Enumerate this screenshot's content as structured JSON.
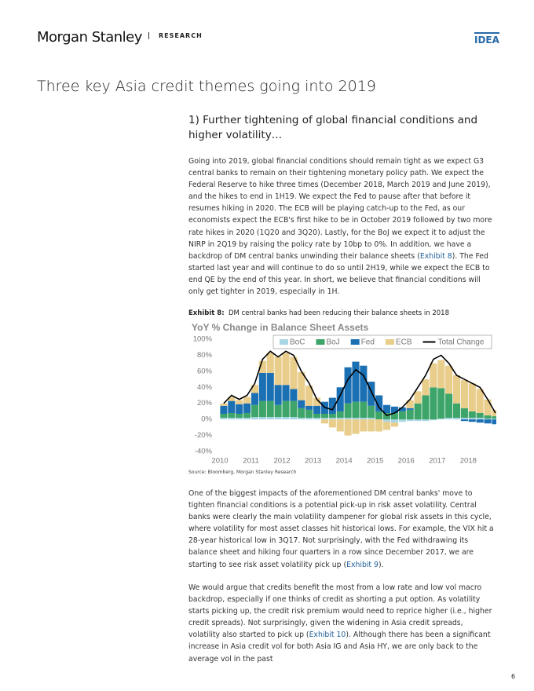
{
  "header": {
    "brand": "Morgan Stanley",
    "section": "RESEARCH",
    "tag": "IDEA"
  },
  "title": "Three key Asia credit themes going into 2019",
  "heading": "1) Further tightening of global financial conditions and higher volatility…",
  "paragraphs": [
    [
      "Going into 2019, global financial conditions should remain tight as we expect G3 central banks to remain on their tightening monetary policy path. We expect the Federal Reserve to hike three times (December 2018, March 2019 and June 2019), and the hikes to end in 1H19. We expect the Fed to pause after that before it resumes hiking in 2020. The ECB will be playing catch-up to the Fed, as our economists expect the ECB's first hike to be in October 2019 followed by two more rate hikes in 2020 (1Q20 and 3Q20). Lastly, for the BoJ we expect it to adjust the NIRP in 2Q19 by raising the policy rate by 10bp to 0%. In addition, we have a backdrop of DM central banks unwinding their balance sheets (",
      "Exhibit 8",
      "). The Fed started last year and will continue to do so until 2H19, while we expect the ECB to end QE by the end of this year. In short, we believe that financial conditions will only get tighter in 2019, especially in 1H."
    ],
    [
      "One of the biggest impacts of the aforementioned DM central banks' move to tighten financial conditions is a potential pick-up in risk asset volatility. Central banks were clearly the main volatility dampener for global risk assets in this cycle, where volatility for most asset classes hit historical lows. For example, the VIX hit a 28-year historical low in 3Q17. Not surprisingly, with the Fed withdrawing its balance sheet and hiking four quarters in a row since December 2017, we are starting to see risk asset volatility pick up (",
      "Exhibit 9",
      ")."
    ],
    [
      "We would argue that credits benefit the most from a low rate and low vol macro backdrop, especially if one thinks of credit as shorting a put option. As volatility starts picking up, the credit risk premium would need to reprice higher (i.e., higher credit spreads). Not surprisingly, given the widening in Asia credit spreads, volatility also started to pick up (",
      "Exhibit 10",
      "). Although there has been a significant increase in Asia credit vol for both Asia IG and Asia HY, we are only back to the average vol in the past"
    ]
  ],
  "exhibit": {
    "label": "Exhibit 8:",
    "caption": "DM central banks had been reducing their balance sheets in 2018",
    "source": "Source: Bloomberg, Morgan Stanley Research"
  },
  "page_number": "6",
  "chart_data": {
    "type": "bar",
    "stacked": true,
    "title": "YoY % Change in Balance Sheet Assets",
    "x": [
      2010.125,
      2010.375,
      2010.625,
      2010.875,
      2011.125,
      2011.375,
      2011.625,
      2011.875,
      2012.125,
      2012.375,
      2012.625,
      2012.875,
      2013.125,
      2013.375,
      2013.625,
      2013.875,
      2014.125,
      2014.375,
      2014.625,
      2014.875,
      2015.125,
      2015.375,
      2015.625,
      2015.875,
      2016.125,
      2016.375,
      2016.625,
      2016.875,
      2017.125,
      2017.375,
      2017.625,
      2017.875,
      2018.125,
      2018.375,
      2018.625,
      2018.875
    ],
    "series": [
      {
        "name": "BoC",
        "color": "#a9d6e5",
        "values": [
          2,
          2,
          2,
          2,
          3,
          3,
          3,
          3,
          3,
          3,
          2,
          2,
          2,
          2,
          2,
          2,
          2,
          2,
          2,
          2,
          0,
          -3,
          -4,
          -3,
          -2,
          -2,
          -2,
          -1,
          1,
          2,
          2,
          2,
          2,
          2,
          1,
          1
        ]
      },
      {
        "name": "BoJ",
        "color": "#3ea56a",
        "values": [
          5,
          6,
          5,
          6,
          15,
          20,
          20,
          15,
          20,
          20,
          12,
          10,
          5,
          5,
          5,
          8,
          18,
          20,
          20,
          15,
          10,
          8,
          8,
          10,
          12,
          20,
          30,
          40,
          38,
          30,
          18,
          12,
          8,
          6,
          4,
          3
        ]
      },
      {
        "name": "Fed",
        "color": "#1b6fb3",
        "values": [
          10,
          15,
          12,
          12,
          15,
          35,
          35,
          25,
          20,
          15,
          10,
          5,
          10,
          15,
          20,
          30,
          45,
          50,
          45,
          30,
          20,
          10,
          8,
          5,
          2,
          0,
          0,
          0,
          0,
          0,
          0,
          -2,
          -3,
          -4,
          -5,
          -6
        ]
      },
      {
        "name": "ECB",
        "color": "#e9cd8b",
        "values": [
          3,
          5,
          5,
          8,
          10,
          15,
          25,
          35,
          40,
          40,
          35,
          25,
          10,
          -5,
          -10,
          -15,
          -20,
          -18,
          -15,
          -15,
          -15,
          -10,
          -5,
          0,
          10,
          15,
          20,
          30,
          35,
          35,
          35,
          35,
          35,
          30,
          20,
          8
        ]
      },
      {
        "name": "Total Change",
        "type": "line",
        "color": "#000000",
        "values": [
          20,
          30,
          25,
          30,
          45,
          75,
          85,
          78,
          85,
          80,
          60,
          45,
          25,
          15,
          12,
          30,
          50,
          62,
          55,
          35,
          15,
          5,
          8,
          15,
          25,
          40,
          55,
          75,
          80,
          70,
          55,
          50,
          45,
          40,
          25,
          8
        ]
      }
    ],
    "xlim": [
      2009.95,
      2018.75
    ],
    "xticks": [
      2010,
      2011,
      2012,
      2013,
      2014,
      2015,
      2016,
      2017,
      2018
    ],
    "ylim": [
      -40,
      100
    ],
    "yticks": [
      {
        "value": 100,
        "label": "100%"
      },
      {
        "value": 80,
        "label": "80%"
      },
      {
        "value": 60,
        "label": "60%"
      },
      {
        "value": 40,
        "label": "40%"
      },
      {
        "value": 20,
        "label": "20%"
      },
      {
        "value": 0,
        "label": "0%"
      },
      {
        "value": -20,
        "label": "-20%"
      },
      {
        "value": -40,
        "label": "-40%"
      }
    ],
    "legend": "top"
  }
}
